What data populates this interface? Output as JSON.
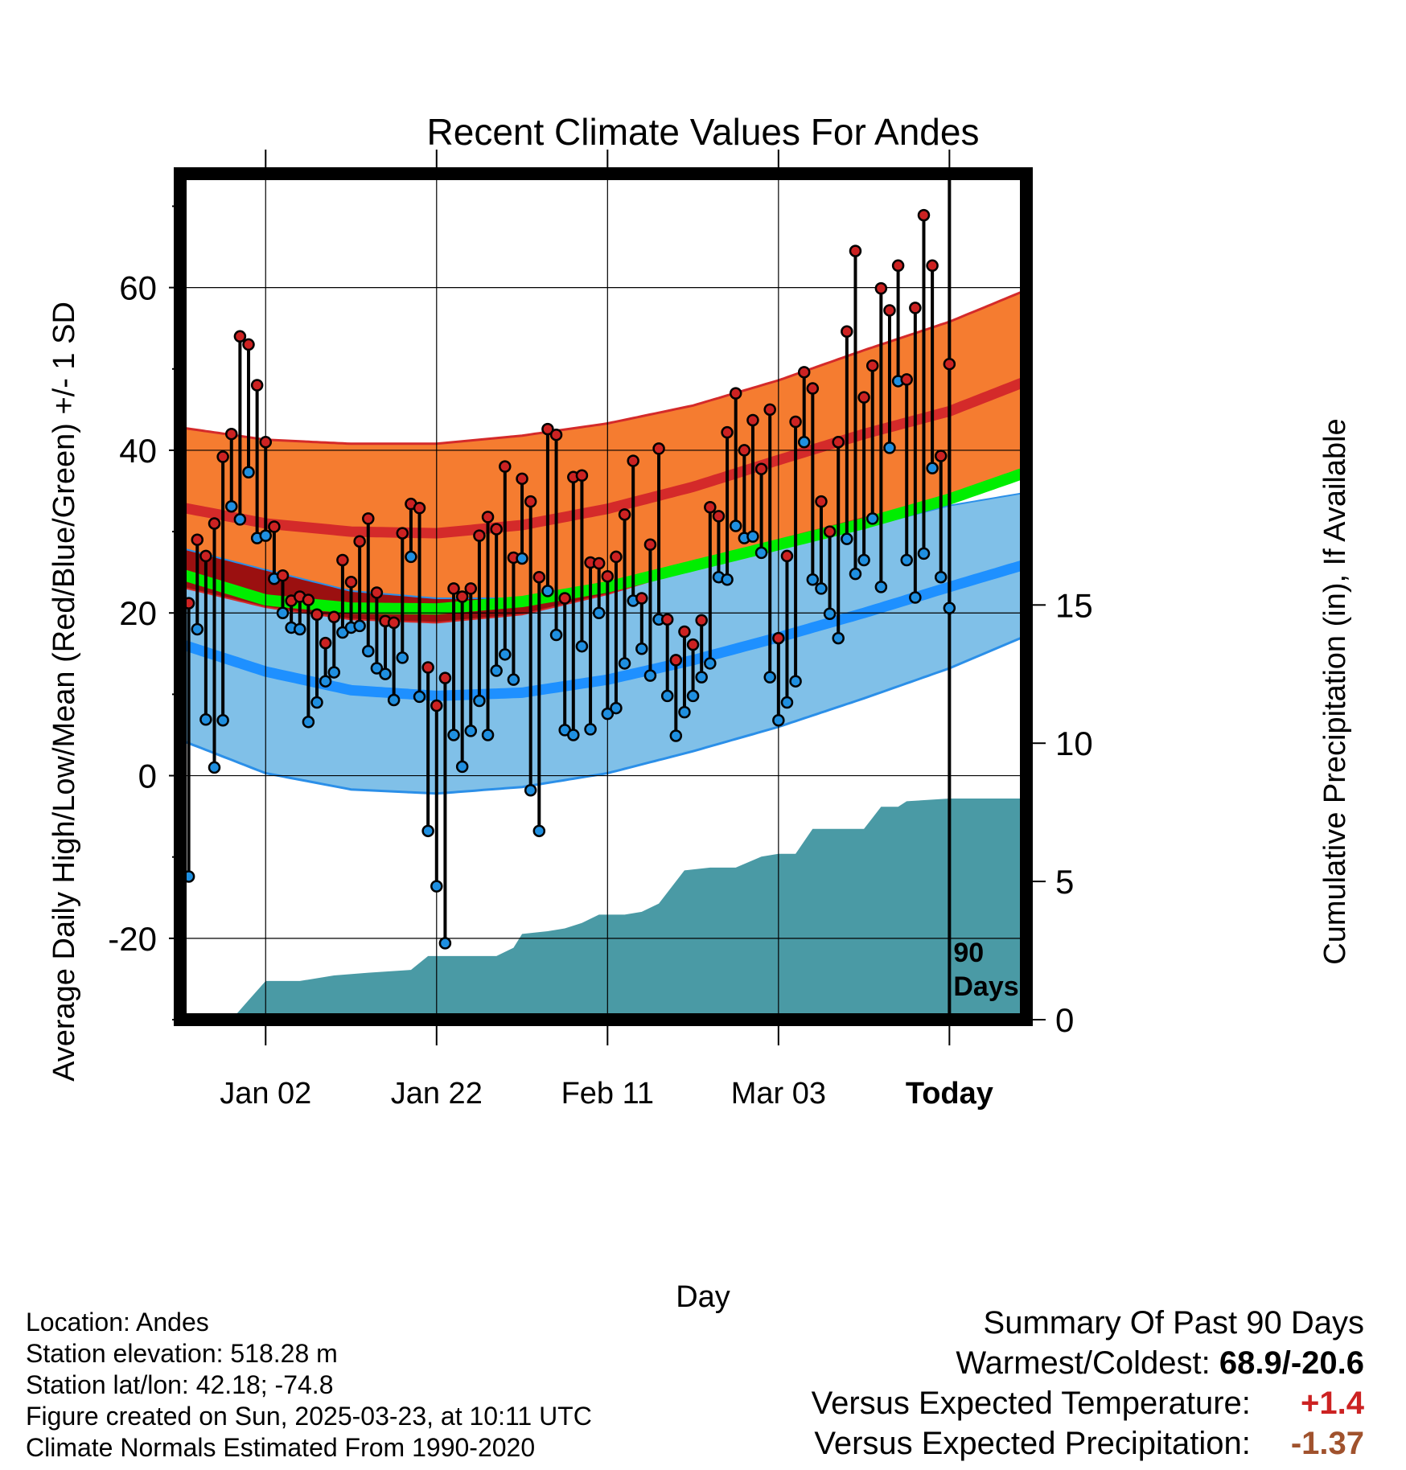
{
  "chart_data": {
    "type": "line",
    "title": "Recent Climate Values For Andes",
    "xlabel": "Day",
    "ylabel_left": "Average Daily High/Low/Mean (Red/Blue/Green) +/- 1 SD",
    "ylabel_right": "Cumulative Precipitation (in), If Available",
    "x_day_range": [
      -90,
      9
    ],
    "y_left_range": [
      -30,
      74
    ],
    "y_right_range": [
      0,
      30.6
    ],
    "x_ticks": [
      {
        "day": -80,
        "label": "Jan 02"
      },
      {
        "day": -60,
        "label": "Jan 22"
      },
      {
        "day": -40,
        "label": "Feb 11"
      },
      {
        "day": -20,
        "label": "Mar 03"
      },
      {
        "day": 0,
        "label": "Today"
      }
    ],
    "y_left_ticks": [
      -20,
      0,
      20,
      40,
      60
    ],
    "y_right_ticks": [
      0,
      5,
      10,
      15
    ],
    "today_marker": {
      "day": 0,
      "label_line1": "90",
      "label_line2": "Days"
    },
    "grid": true,
    "normals": {
      "days": [
        -90,
        -80,
        -70,
        -60,
        -50,
        -40,
        -30,
        -20,
        -10,
        0,
        9
      ],
      "high_mean": [
        33.0,
        31.0,
        30.0,
        29.8,
        30.8,
        32.8,
        35.5,
        38.8,
        42.0,
        44.8,
        48.5
      ],
      "high_sd": [
        9.8,
        10.3,
        10.8,
        11.0,
        11.0,
        10.5,
        10.0,
        9.8,
        10.3,
        11.0,
        11.2
      ],
      "low_mean": [
        16.2,
        12.8,
        10.5,
        9.8,
        10.2,
        11.8,
        14.2,
        17.0,
        20.0,
        23.2,
        26.0
      ],
      "low_sd": [
        11.8,
        12.5,
        12.2,
        12.0,
        11.6,
        11.5,
        11.2,
        11.0,
        10.5,
        10.0,
        8.8
      ],
      "avg_mean": [
        24.8,
        21.6,
        20.6,
        20.5,
        21.4,
        23.2,
        25.8,
        28.4,
        31.0,
        34.0,
        37.3
      ]
    },
    "observed": {
      "start_day": -89,
      "high": [
        21.2,
        29.0,
        27.0,
        31.0,
        39.2,
        42.0,
        54.0,
        53.0,
        48.0,
        41.0,
        30.6,
        24.6,
        21.5,
        22.0,
        21.6,
        19.8,
        16.3,
        19.5,
        26.5,
        23.8,
        28.8,
        31.6,
        22.5,
        19.0,
        18.8,
        29.8,
        33.4,
        32.9,
        13.3,
        8.6,
        12.0,
        23.0,
        22.0,
        23.0,
        29.5,
        31.8,
        30.3,
        38.0,
        26.8,
        36.5,
        33.7,
        24.4,
        42.6,
        41.9,
        21.8,
        36.7,
        36.9,
        26.2,
        26.1,
        24.5,
        26.9,
        32.1,
        38.7,
        21.8,
        28.4,
        40.2,
        19.2,
        14.2,
        17.7,
        16.1,
        19.1,
        33.0,
        31.9,
        42.2,
        47.0,
        40.0,
        43.7,
        37.7,
        45.0,
        16.9,
        27.0,
        43.5,
        49.6,
        47.6,
        33.7,
        30.0,
        41.0,
        54.6,
        64.5,
        46.5,
        50.4,
        59.9,
        57.2,
        62.7,
        48.7,
        57.5,
        68.9,
        62.7,
        39.3,
        50.6
      ],
      "low": [
        -12.4,
        18.0,
        6.9,
        1.0,
        6.8,
        33.1,
        31.5,
        37.3,
        29.2,
        29.5,
        24.2,
        20.0,
        18.2,
        18.0,
        6.6,
        9.0,
        11.6,
        12.7,
        17.6,
        18.2,
        18.4,
        15.3,
        13.2,
        12.5,
        9.3,
        14.5,
        26.9,
        9.7,
        -6.8,
        -13.6,
        -20.6,
        5.0,
        1.1,
        5.5,
        9.2,
        5.0,
        12.9,
        14.9,
        11.8,
        26.7,
        -1.8,
        -6.8,
        22.7,
        17.3,
        5.6,
        5.0,
        15.9,
        5.7,
        20.0,
        7.6,
        8.3,
        13.8,
        21.5,
        15.6,
        12.3,
        19.2,
        9.8,
        4.9,
        7.8,
        9.8,
        12.1,
        13.8,
        24.4,
        24.1,
        30.7,
        29.2,
        29.4,
        27.4,
        12.1,
        6.8,
        9.0,
        11.6,
        41.0,
        24.1,
        23.0,
        19.9,
        16.9,
        29.1,
        24.8,
        26.5,
        31.6,
        23.2,
        40.3,
        48.5,
        26.5,
        21.9,
        27.3,
        37.8,
        24.4,
        20.6
      ]
    },
    "precip": {
      "days": [
        -90,
        -84,
        -82,
        -80,
        -76,
        -72,
        -68,
        -63,
        -61,
        -58,
        -53,
        -51,
        -50,
        -47,
        -45,
        -43,
        -41,
        -38,
        -36,
        -34,
        -33,
        -31,
        -28,
        -25,
        -22,
        -20,
        -18,
        -16,
        -12,
        -10,
        -8,
        -6,
        -5,
        0,
        9
      ],
      "values": [
        0,
        0,
        0.7,
        1.4,
        1.4,
        1.6,
        1.7,
        1.8,
        2.3,
        2.3,
        2.3,
        2.6,
        3.1,
        3.2,
        3.3,
        3.5,
        3.8,
        3.8,
        3.9,
        4.2,
        4.6,
        5.4,
        5.5,
        5.5,
        5.9,
        6.0,
        6.0,
        6.9,
        6.9,
        6.9,
        7.7,
        7.7,
        7.9,
        8.0,
        8.0
      ],
      "units": "in"
    },
    "colors": {
      "high_band": "#f57c30",
      "high_edge": "#d42a2a",
      "high_line": "#d42a2a",
      "low_band": "#80c0e8",
      "low_edge": "#2b8fe8",
      "low_line": "#1e90ff",
      "avg_line": "#00ee00",
      "overlap": "#9b1010",
      "precip": "#4a9aa5",
      "high_dot": "#cc2222",
      "low_dot": "#1f8fe0"
    }
  },
  "info": {
    "location": "Location: Andes",
    "elevation": "Station elevation: 518.28 m",
    "latlon": "Station lat/lon: 42.18; -74.8",
    "created": "Figure created on Sun, 2025-03-23, at 10:11 UTC",
    "normals_note": "Climate Normals Estimated From 1990-2020"
  },
  "summary": {
    "heading": "Summary Of Past 90 Days",
    "extremes_label": "Warmest/Coldest:",
    "extremes_value": "68.9/-20.6",
    "temp_label": "Versus Expected Temperature:",
    "temp_value": "+1.4",
    "precip_label": "Versus Expected Precipitation:",
    "precip_value": "-1.37"
  }
}
